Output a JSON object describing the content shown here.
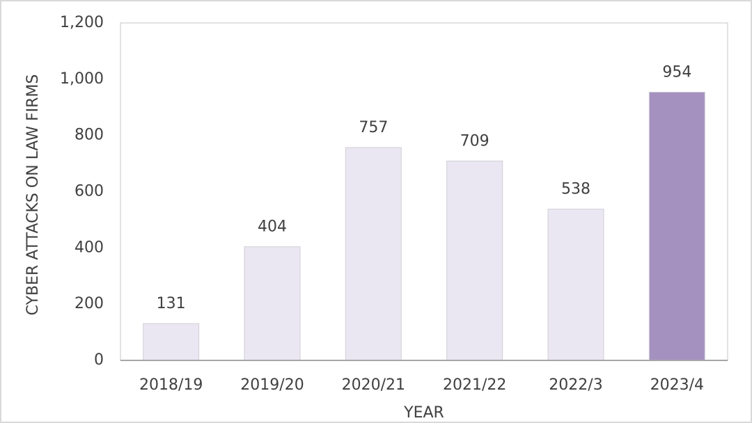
{
  "chart_data": {
    "type": "bar",
    "x_label": "YEAR",
    "y_label": "CYBER ATTACKS ON LAW FIRMS",
    "categories": [
      "2018/19",
      "2019/20",
      "2020/21",
      "2021/22",
      "2022/3",
      "2023/4"
    ],
    "values": [
      131,
      404,
      757,
      709,
      538,
      954
    ],
    "colors": [
      "#ebe7f2",
      "#ebe7f2",
      "#ebe7f2",
      "#ebe7f2",
      "#ebe7f2",
      "#a591c0"
    ],
    "ylim": [
      0,
      1200
    ],
    "yticks": [
      0,
      200,
      400,
      600,
      800,
      {
        "value": 1000,
        "label": "1,000"
      },
      {
        "value": 1200,
        "label": "1,200"
      }
    ],
    "grid": false
  }
}
